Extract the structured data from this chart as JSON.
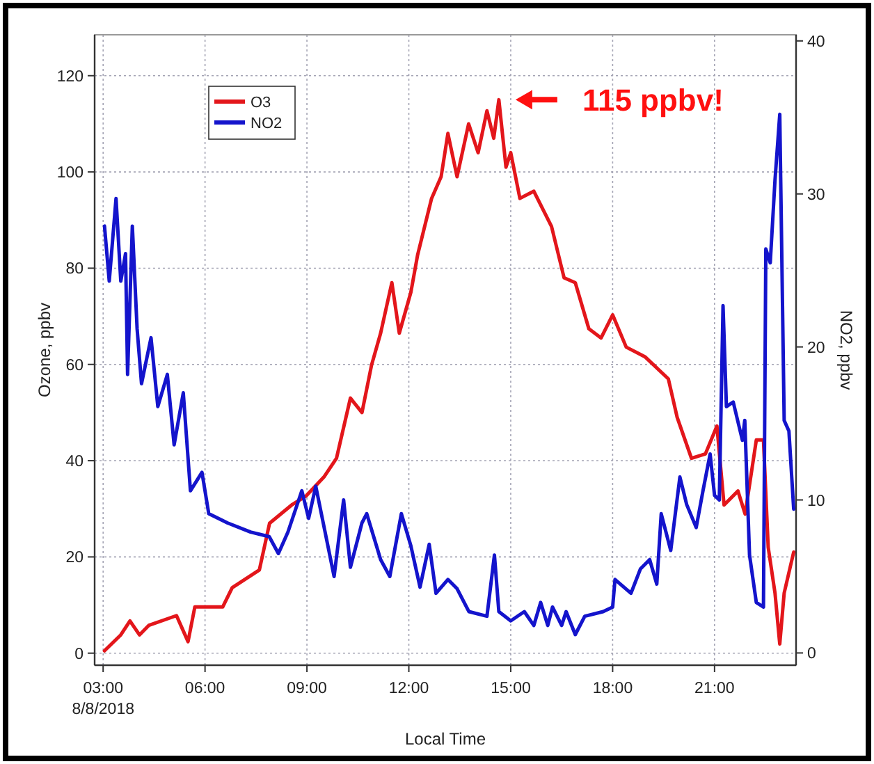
{
  "chart_data": {
    "type": "line",
    "xlabel": "Local Time",
    "ylabel": "Ozone, ppbv",
    "y2label": "NO2, ppbv",
    "xlim": [
      2.75,
      23.4
    ],
    "xticks": [
      {
        "value": 3,
        "label": "03:00\n8/8/2018"
      },
      {
        "value": 6,
        "label": "06:00"
      },
      {
        "value": 9,
        "label": "09:00"
      },
      {
        "value": 12,
        "label": "12:00"
      },
      {
        "value": 15,
        "label": "15:00"
      },
      {
        "value": 18,
        "label": "18:00"
      },
      {
        "value": 21,
        "label": "21:00"
      }
    ],
    "ylim": [
      -2.5,
      128.5
    ],
    "yticks": [
      0,
      20,
      40,
      60,
      80,
      100,
      120
    ],
    "y2lim": [
      -0.8,
      40.4
    ],
    "y2ticks": [
      0,
      10,
      20,
      30,
      40
    ],
    "grid": true,
    "legend": "top left",
    "line_style": "solid",
    "marker": "none",
    "annotations": [
      {
        "text": "115 ppbv!",
        "x": 14.65,
        "y": 115
      }
    ],
    "series": [
      {
        "name": "O3",
        "color": "#e3161b",
        "x": [
          3.04,
          3.52,
          3.79,
          4.07,
          4.35,
          5.16,
          5.5,
          5.7,
          6.52,
          6.8,
          7.6,
          7.9,
          8.57,
          8.98,
          9.5,
          9.87,
          10.28,
          10.62,
          10.9,
          11.17,
          11.5,
          11.72,
          12.06,
          12.26,
          12.67,
          12.95,
          13.15,
          13.42,
          13.76,
          14.04,
          14.3,
          14.5,
          14.65,
          14.86,
          15.0,
          15.27,
          15.68,
          16.2,
          16.57,
          16.9,
          17.3,
          17.66,
          18.0,
          18.4,
          18.95,
          19.64,
          19.9,
          20.32,
          20.73,
          21.07,
          21.28,
          21.69,
          21.9,
          22.23,
          22.44,
          22.58,
          22.78,
          22.92,
          23.05,
          23.33
        ],
        "values": [
          0.5,
          3.8,
          6.7,
          3.8,
          5.8,
          7.8,
          2.4,
          9.6,
          9.6,
          13.6,
          17.3,
          27,
          30.9,
          32.7,
          36.6,
          40.5,
          53,
          50,
          59.8,
          66.5,
          77,
          66.5,
          75,
          82.8,
          94.5,
          99,
          108,
          99,
          110,
          104,
          112.7,
          107,
          115,
          101,
          104,
          94.5,
          96,
          88.7,
          78,
          77,
          67.4,
          65.5,
          70.3,
          63.6,
          61.6,
          57,
          49,
          40.5,
          41.4,
          47.2,
          30.8,
          33.7,
          28.9,
          44.3,
          44.3,
          22,
          12.5,
          1.9,
          12.5,
          21
        ]
      },
      {
        "name": "NO2",
        "color": "#1414cc",
        "axis": "y2",
        "x": [
          3.04,
          3.18,
          3.38,
          3.52,
          3.66,
          3.72,
          3.86,
          4.0,
          4.13,
          4.41,
          4.61,
          4.89,
          5.09,
          5.36,
          5.57,
          5.91,
          6.11,
          6.66,
          7.34,
          7.89,
          8.16,
          8.44,
          8.85,
          9.05,
          9.26,
          9.8,
          10.08,
          10.28,
          10.62,
          10.76,
          11.17,
          11.44,
          11.78,
          12.06,
          12.33,
          12.6,
          12.8,
          13.15,
          13.42,
          13.77,
          14.3,
          14.52,
          14.65,
          15.0,
          15.4,
          15.68,
          15.88,
          16.09,
          16.23,
          16.5,
          16.63,
          16.9,
          17.18,
          17.72,
          18.0,
          18.07,
          18.54,
          18.82,
          19.09,
          19.3,
          19.43,
          19.71,
          19.98,
          20.18,
          20.46,
          20.66,
          20.87,
          21.0,
          21.14,
          21.25,
          21.35,
          21.55,
          21.82,
          21.89,
          22.03,
          22.23,
          22.44,
          22.51,
          22.64,
          22.78,
          22.92,
          23.05,
          23.19,
          23.33
        ],
        "values": [
          27.9,
          24.3,
          29.7,
          24.3,
          26.1,
          18.2,
          27.9,
          21.2,
          17.6,
          20.6,
          16.1,
          18.2,
          13.6,
          17,
          10.6,
          11.8,
          9.1,
          8.5,
          7.9,
          7.6,
          6.5,
          7.9,
          10.6,
          8.8,
          10.9,
          5,
          10,
          5.6,
          8.5,
          9.1,
          6.1,
          5,
          9.1,
          7,
          4.3,
          7.1,
          3.9,
          4.8,
          4.2,
          2.7,
          2.4,
          6.4,
          2.7,
          2.1,
          2.7,
          1.8,
          3.3,
          1.8,
          3,
          1.8,
          2.7,
          1.2,
          2.4,
          2.7,
          3,
          4.8,
          3.9,
          5.5,
          6.1,
          4.5,
          9.1,
          6.7,
          11.5,
          9.7,
          8.2,
          10.6,
          13,
          10.3,
          10,
          22.7,
          16.1,
          16.4,
          13.9,
          15.2,
          6.4,
          3.3,
          3,
          26.4,
          25.5,
          30.9,
          35.2,
          15.2,
          14.5,
          9.4
        ]
      }
    ]
  }
}
